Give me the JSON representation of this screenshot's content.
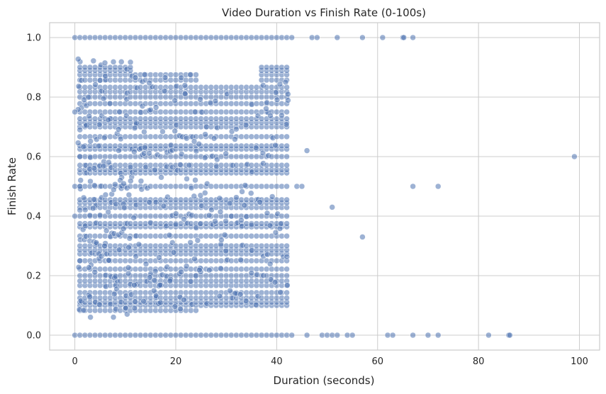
{
  "chart_data": {
    "type": "scatter",
    "title": "Video Duration vs Finish Rate (0-100s)",
    "xlabel": "Duration (seconds)",
    "ylabel": "Finish Rate",
    "xlim": [
      -5,
      104
    ],
    "ylim": [
      -0.05,
      1.05
    ],
    "xticks": [
      0,
      20,
      40,
      60,
      80,
      100
    ],
    "yticks": [
      0.0,
      0.2,
      0.4,
      0.6,
      0.8,
      1.0
    ],
    "xtick_labels": [
      "0",
      "20",
      "40",
      "60",
      "80",
      "100"
    ],
    "ytick_labels": [
      "0.0",
      "0.2",
      "0.4",
      "0.6",
      "0.8",
      "1.0"
    ],
    "grid": true,
    "color": "#4c72b0",
    "dense_region": {
      "x_range": [
        1,
        42
      ],
      "y_range": [
        0.05,
        0.95
      ]
    },
    "rows": {
      "y1": {
        "y": 1.0,
        "x_from": 0,
        "x_to": 42
      },
      "y0": {
        "y": 0.0,
        "x_from": 0,
        "x_to": 42
      }
    },
    "points": [
      {
        "x": 0,
        "y": 0.75
      },
      {
        "x": 0,
        "y": 0.5
      },
      {
        "x": 0,
        "y": 0.4
      },
      {
        "x": 1,
        "y": 0.69
      },
      {
        "x": 1,
        "y": 0.6
      },
      {
        "x": 1,
        "y": 0.5
      },
      {
        "x": 1,
        "y": 0.42
      },
      {
        "x": 1,
        "y": 0.25
      },
      {
        "x": 44,
        "y": 0.5
      },
      {
        "x": 45,
        "y": 0.5
      },
      {
        "x": 46,
        "y": 0.62
      },
      {
        "x": 51,
        "y": 0.43
      },
      {
        "x": 57,
        "y": 0.33
      },
      {
        "x": 67,
        "y": 0.5
      },
      {
        "x": 72,
        "y": 0.5
      },
      {
        "x": 99,
        "y": 0.6
      },
      {
        "x": 43,
        "y": 1.0
      },
      {
        "x": 47,
        "y": 1.0
      },
      {
        "x": 48,
        "y": 1.0
      },
      {
        "x": 52,
        "y": 1.0
      },
      {
        "x": 57,
        "y": 1.0
      },
      {
        "x": 61,
        "y": 1.0
      },
      {
        "x": 65,
        "y": 1.0
      },
      {
        "x": 65.2,
        "y": 1.0
      },
      {
        "x": 67,
        "y": 1.0
      },
      {
        "x": 43,
        "y": 0.0
      },
      {
        "x": 46,
        "y": 0.0
      },
      {
        "x": 49,
        "y": 0.0
      },
      {
        "x": 50,
        "y": 0.0
      },
      {
        "x": 51,
        "y": 0.0
      },
      {
        "x": 52,
        "y": 0.0
      },
      {
        "x": 54,
        "y": 0.0
      },
      {
        "x": 55,
        "y": 0.0
      },
      {
        "x": 62,
        "y": 0.0
      },
      {
        "x": 63,
        "y": 0.0
      },
      {
        "x": 67,
        "y": 0.0
      },
      {
        "x": 70,
        "y": 0.0
      },
      {
        "x": 72,
        "y": 0.0
      },
      {
        "x": 82,
        "y": 0.0
      },
      {
        "x": 86,
        "y": 0.0
      },
      {
        "x": 86.2,
        "y": 0.0
      }
    ]
  }
}
